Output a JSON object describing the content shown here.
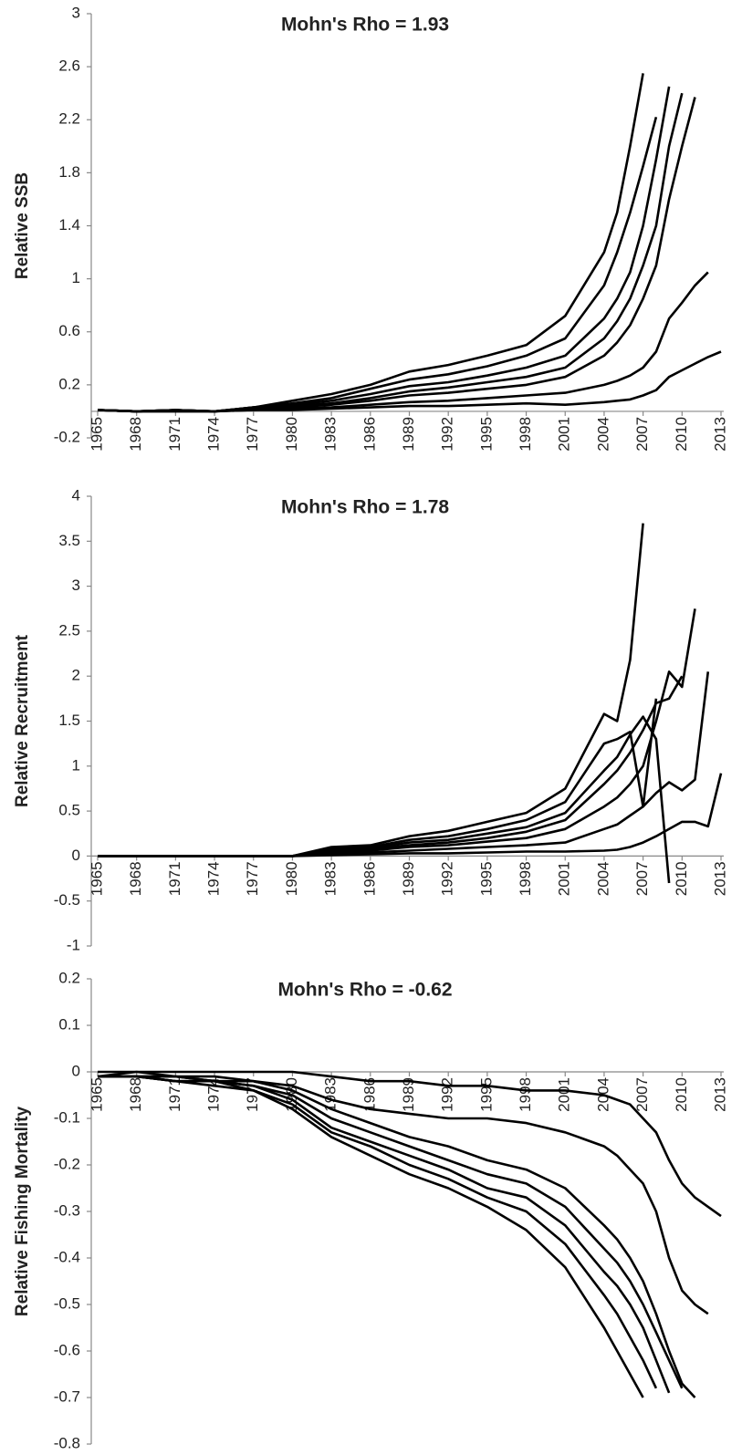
{
  "chart_data": [
    {
      "type": "line",
      "title": "Mohn's Rho = 1.93",
      "y_label": "Relative SSB",
      "x": [
        1965,
        1968,
        1971,
        1974,
        1977,
        1980,
        1983,
        1986,
        1989,
        1992,
        1995,
        1998,
        2001,
        2004,
        2005,
        2006,
        2007,
        2008,
        2009,
        2010,
        2011,
        2012,
        2013
      ],
      "xlim": [
        1965,
        2013
      ],
      "xticks": [
        1965,
        1968,
        1971,
        1974,
        1977,
        1980,
        1983,
        1986,
        1989,
        1992,
        1995,
        1998,
        2001,
        2004,
        2007,
        2010,
        2013
      ],
      "ylim": [
        -0.2,
        3
      ],
      "yticks": [
        -0.2,
        0.2,
        0.6,
        1,
        1.4,
        1.8,
        2.2,
        2.6,
        3
      ],
      "grid": false,
      "series": [
        {
          "color": "#000000",
          "values": [
            0.01,
            0,
            0.01,
            0,
            0.03,
            0.08,
            0.13,
            0.2,
            0.3,
            0.35,
            0.42,
            0.5,
            0.72,
            1.2,
            1.5,
            2.0,
            2.55,
            null,
            null,
            null,
            null,
            null,
            null
          ]
        },
        {
          "color": "#000000",
          "values": [
            0.01,
            0,
            0.01,
            0,
            0.03,
            0.06,
            0.1,
            0.17,
            0.24,
            0.28,
            0.34,
            0.42,
            0.55,
            0.95,
            1.2,
            1.5,
            1.85,
            2.22,
            null,
            null,
            null,
            null,
            null
          ]
        },
        {
          "color": "#000000",
          "values": [
            0.01,
            0,
            0.01,
            0,
            0.03,
            0.05,
            0.08,
            0.13,
            0.19,
            0.22,
            0.27,
            0.33,
            0.42,
            0.7,
            0.85,
            1.05,
            1.4,
            1.9,
            2.45,
            null,
            null,
            null,
            null
          ]
        },
        {
          "color": "#000000",
          "values": [
            0.01,
            0,
            0.01,
            0,
            0.02,
            0.04,
            0.06,
            0.1,
            0.15,
            0.18,
            0.22,
            0.26,
            0.33,
            0.55,
            0.68,
            0.85,
            1.1,
            1.4,
            2.0,
            2.4,
            null,
            null,
            null
          ]
        },
        {
          "color": "#000000",
          "values": [
            0.01,
            0,
            0.01,
            0,
            0.02,
            0.03,
            0.05,
            0.08,
            0.12,
            0.14,
            0.17,
            0.2,
            0.26,
            0.42,
            0.52,
            0.65,
            0.85,
            1.1,
            1.6,
            2.0,
            2.37,
            null,
            null
          ]
        },
        {
          "color": "#000000",
          "values": [
            0.01,
            0,
            0,
            0,
            0.01,
            0.02,
            0.03,
            0.05,
            0.07,
            0.08,
            0.1,
            0.12,
            0.14,
            0.2,
            0.23,
            0.27,
            0.33,
            0.45,
            0.7,
            0.82,
            0.95,
            1.05,
            null
          ]
        },
        {
          "color": "#000000",
          "values": [
            0.01,
            0,
            0,
            0,
            0.01,
            0.01,
            0.02,
            0.03,
            0.04,
            0.04,
            0.05,
            0.06,
            0.05,
            0.07,
            0.08,
            0.09,
            0.12,
            0.16,
            0.26,
            0.31,
            0.36,
            0.41,
            0.45
          ]
        }
      ]
    },
    {
      "type": "line",
      "title": "Mohn's Rho = 1.78",
      "y_label": "Relative Recruitment",
      "x": [
        1965,
        1968,
        1971,
        1974,
        1977,
        1980,
        1983,
        1986,
        1989,
        1992,
        1995,
        1998,
        2001,
        2004,
        2005,
        2006,
        2007,
        2008,
        2009,
        2010,
        2011,
        2012,
        2013
      ],
      "xlim": [
        1965,
        2013
      ],
      "xticks": [
        1965,
        1968,
        1971,
        1974,
        1977,
        1980,
        1983,
        1986,
        1989,
        1992,
        1995,
        1998,
        2001,
        2004,
        2007,
        2010,
        2013
      ],
      "ylim": [
        -1,
        4
      ],
      "yticks": [
        -1,
        -0.5,
        0,
        0.5,
        1,
        1.5,
        2,
        2.5,
        3,
        3.5,
        4
      ],
      "grid": false,
      "series": [
        {
          "color": "#000000",
          "values": [
            0,
            0,
            0,
            0,
            0,
            0,
            0.1,
            0.12,
            0.22,
            0.28,
            0.38,
            0.48,
            0.75,
            1.58,
            1.5,
            2.18,
            3.7,
            null,
            null,
            null,
            null,
            null,
            null
          ]
        },
        {
          "color": "#000000",
          "values": [
            0,
            0,
            0,
            0,
            0,
            0,
            0.08,
            0.1,
            0.18,
            0.22,
            0.3,
            0.4,
            0.6,
            1.25,
            1.3,
            1.38,
            0.55,
            1.75,
            null,
            null,
            null,
            null,
            null
          ]
        },
        {
          "color": "#000000",
          "values": [
            0,
            0,
            0,
            0,
            0,
            0,
            0.07,
            0.09,
            0.15,
            0.18,
            0.25,
            0.32,
            0.48,
            0.95,
            1.1,
            1.35,
            1.55,
            1.3,
            -0.3,
            null,
            null,
            null,
            null
          ]
        },
        {
          "color": "#000000",
          "values": [
            0,
            0,
            0,
            0,
            0,
            0,
            0.06,
            0.08,
            0.12,
            0.15,
            0.2,
            0.27,
            0.4,
            0.8,
            0.95,
            1.15,
            1.4,
            1.7,
            1.75,
            2.0,
            null,
            null,
            null
          ]
        },
        {
          "color": "#000000",
          "values": [
            0,
            0,
            0,
            0,
            0,
            0,
            0.05,
            0.06,
            0.1,
            0.12,
            0.16,
            0.2,
            0.3,
            0.55,
            0.65,
            0.8,
            1.0,
            1.5,
            2.05,
            1.88,
            2.75,
            null,
            null
          ]
        },
        {
          "color": "#000000",
          "values": [
            0,
            0,
            0,
            0,
            0,
            0,
            0.03,
            0.04,
            0.06,
            0.08,
            0.1,
            0.12,
            0.15,
            0.3,
            0.35,
            0.45,
            0.55,
            0.7,
            0.82,
            0.73,
            0.85,
            2.05,
            null
          ]
        },
        {
          "color": "#000000",
          "values": [
            0,
            0,
            0,
            0,
            0,
            0,
            0.01,
            0.02,
            0.03,
            0.03,
            0.04,
            0.05,
            0.05,
            0.06,
            0.07,
            0.1,
            0.15,
            0.22,
            0.3,
            0.38,
            0.38,
            0.33,
            0.92
          ]
        }
      ]
    },
    {
      "type": "line",
      "title": "Mohn's Rho = -0.62",
      "y_label": "Relative Fishing Mortality",
      "x": [
        1965,
        1968,
        1971,
        1974,
        1977,
        1980,
        1983,
        1986,
        1989,
        1992,
        1995,
        1998,
        2001,
        2004,
        2005,
        2006,
        2007,
        2008,
        2009,
        2010,
        2011,
        2012,
        2013
      ],
      "xlim": [
        1965,
        2013
      ],
      "xticks": [
        1965,
        1968,
        1971,
        1974,
        1977,
        1980,
        1983,
        1986,
        1989,
        1992,
        1995,
        1998,
        2001,
        2004,
        2007,
        2010,
        2013
      ],
      "ylim": [
        -0.8,
        0.2
      ],
      "yticks": [
        -0.8,
        -0.7,
        -0.6,
        -0.5,
        -0.4,
        -0.3,
        -0.2,
        -0.1,
        0,
        0.1,
        0.2
      ],
      "grid": false,
      "series": [
        {
          "color": "#000000",
          "values": [
            -0.01,
            -0.01,
            -0.02,
            -0.03,
            -0.04,
            -0.08,
            -0.14,
            -0.18,
            -0.22,
            -0.25,
            -0.29,
            -0.34,
            -0.42,
            -0.55,
            -0.6,
            -0.65,
            -0.7,
            null,
            null,
            null,
            null,
            null,
            null
          ]
        },
        {
          "color": "#000000",
          "values": [
            -0.01,
            -0.01,
            -0.02,
            -0.02,
            -0.04,
            -0.07,
            -0.13,
            -0.16,
            -0.2,
            -0.23,
            -0.27,
            -0.3,
            -0.37,
            -0.48,
            -0.52,
            -0.57,
            -0.62,
            -0.68,
            null,
            null,
            null,
            null,
            null
          ]
        },
        {
          "color": "#000000",
          "values": [
            -0.01,
            -0.01,
            -0.02,
            -0.02,
            -0.03,
            -0.06,
            -0.12,
            -0.15,
            -0.18,
            -0.21,
            -0.25,
            -0.27,
            -0.33,
            -0.43,
            -0.46,
            -0.5,
            -0.55,
            -0.62,
            -0.69,
            null,
            null,
            null,
            null
          ]
        },
        {
          "color": "#000000",
          "values": [
            -0.01,
            -0.01,
            -0.01,
            -0.02,
            -0.03,
            -0.05,
            -0.1,
            -0.13,
            -0.16,
            -0.19,
            -0.22,
            -0.24,
            -0.29,
            -0.38,
            -0.41,
            -0.45,
            -0.5,
            -0.56,
            -0.62,
            -0.68,
            null,
            null,
            null
          ]
        },
        {
          "color": "#000000",
          "values": [
            -0.01,
            -0.01,
            -0.01,
            -0.02,
            -0.02,
            -0.04,
            -0.08,
            -0.11,
            -0.14,
            -0.16,
            -0.19,
            -0.21,
            -0.25,
            -0.33,
            -0.36,
            -0.4,
            -0.45,
            -0.52,
            -0.6,
            -0.67,
            -0.7,
            null,
            null
          ]
        },
        {
          "color": "#000000",
          "values": [
            -0.01,
            0,
            -0.01,
            -0.01,
            -0.02,
            -0.03,
            -0.06,
            -0.08,
            -0.09,
            -0.1,
            -0.1,
            -0.11,
            -0.13,
            -0.16,
            -0.18,
            -0.21,
            -0.24,
            -0.3,
            -0.4,
            -0.47,
            -0.5,
            -0.52,
            null
          ]
        },
        {
          "color": "#000000",
          "values": [
            0,
            0,
            0,
            0,
            0,
            0,
            -0.01,
            -0.02,
            -0.02,
            -0.03,
            -0.03,
            -0.04,
            -0.04,
            -0.05,
            -0.06,
            -0.07,
            -0.1,
            -0.13,
            -0.19,
            -0.24,
            -0.27,
            -0.29,
            -0.31
          ]
        }
      ]
    }
  ]
}
